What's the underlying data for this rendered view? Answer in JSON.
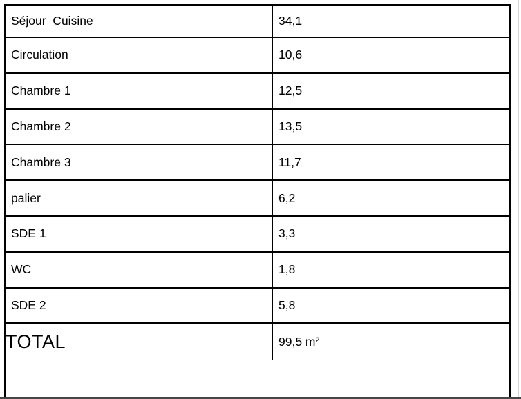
{
  "table": {
    "rows": [
      {
        "label": "Séjour  Cuisine",
        "value": "34,1"
      },
      {
        "label": "Circulation",
        "value": "10,6"
      },
      {
        "label": "Chambre 1",
        "value": "12,5"
      },
      {
        "label": "Chambre 2",
        "value": "13,5"
      },
      {
        "label": "Chambre 3",
        "value": "11,7"
      },
      {
        "label": "palier",
        "value": "6,2"
      },
      {
        "label": "SDE 1",
        "value": "3,3"
      },
      {
        "label": "WC",
        "value": "1,8"
      },
      {
        "label": "SDE 2",
        "value": "5,8"
      }
    ],
    "total": {
      "label": "TOTAL",
      "value": "99,5 m²"
    }
  },
  "colors": {
    "border": "#000000",
    "text": "#000000",
    "background": "#ffffff",
    "page_edge_line": "#d6d6d6",
    "bottom_edge_line": "#474747"
  }
}
